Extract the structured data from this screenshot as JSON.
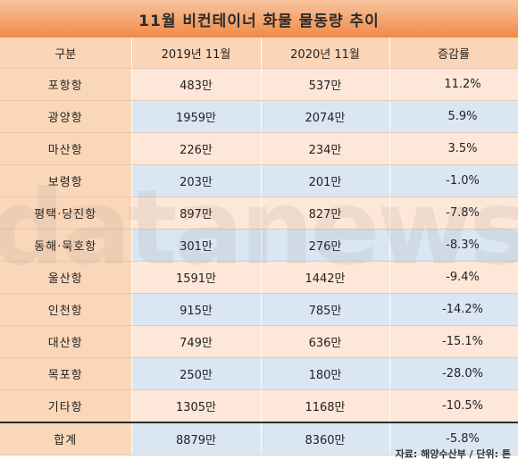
{
  "title": "11월 비컨테이너 화물 물동량 추이",
  "headers": [
    "구분",
    "2019년 11월",
    "2020년 11월",
    "증감률"
  ],
  "rows": [
    {
      "port": "포항항",
      "y2019": "483만",
      "y2020": "537만",
      "change": "11.2%"
    },
    {
      "port": "광양항",
      "y2019": "1959만",
      "y2020": "2074만",
      "change": "5.9%"
    },
    {
      "port": "마산항",
      "y2019": "226만",
      "y2020": "234만",
      "change": "3.5%"
    },
    {
      "port": "보령항",
      "y2019": "203만",
      "y2020": "201만",
      "change": "-1.0%"
    },
    {
      "port": "평택·당진항",
      "y2019": "897만",
      "y2020": "827만",
      "change": "-7.8%"
    },
    {
      "port": "동해·묵호항",
      "y2019": "301만",
      "y2020": "276만",
      "change": "-8.3%"
    },
    {
      "port": "울산항",
      "y2019": "1591만",
      "y2020": "1442만",
      "change": "-9.4%"
    },
    {
      "port": "인천항",
      "y2019": "915만",
      "y2020": "785만",
      "change": "-14.2%"
    },
    {
      "port": "대산항",
      "y2019": "749만",
      "y2020": "636만",
      "change": "-15.1%"
    },
    {
      "port": "목포항",
      "y2019": "250만",
      "y2020": "180만",
      "change": "-28.0%"
    },
    {
      "port": "기타항",
      "y2019": "1305만",
      "y2020": "1168만",
      "change": "-10.5%"
    }
  ],
  "total": {
    "port": "합계",
    "y2019": "8879만",
    "y2020": "8360만",
    "change": "-5.8%"
  },
  "source": "자료: 해양수산부 / 단위: 톤",
  "watermark": "datanews",
  "colors": {
    "title_bg": "#f08a45",
    "label_bg": "#fbd7ba",
    "row_peach": "#fde7d8",
    "row_blue": "#dbe6f4"
  }
}
